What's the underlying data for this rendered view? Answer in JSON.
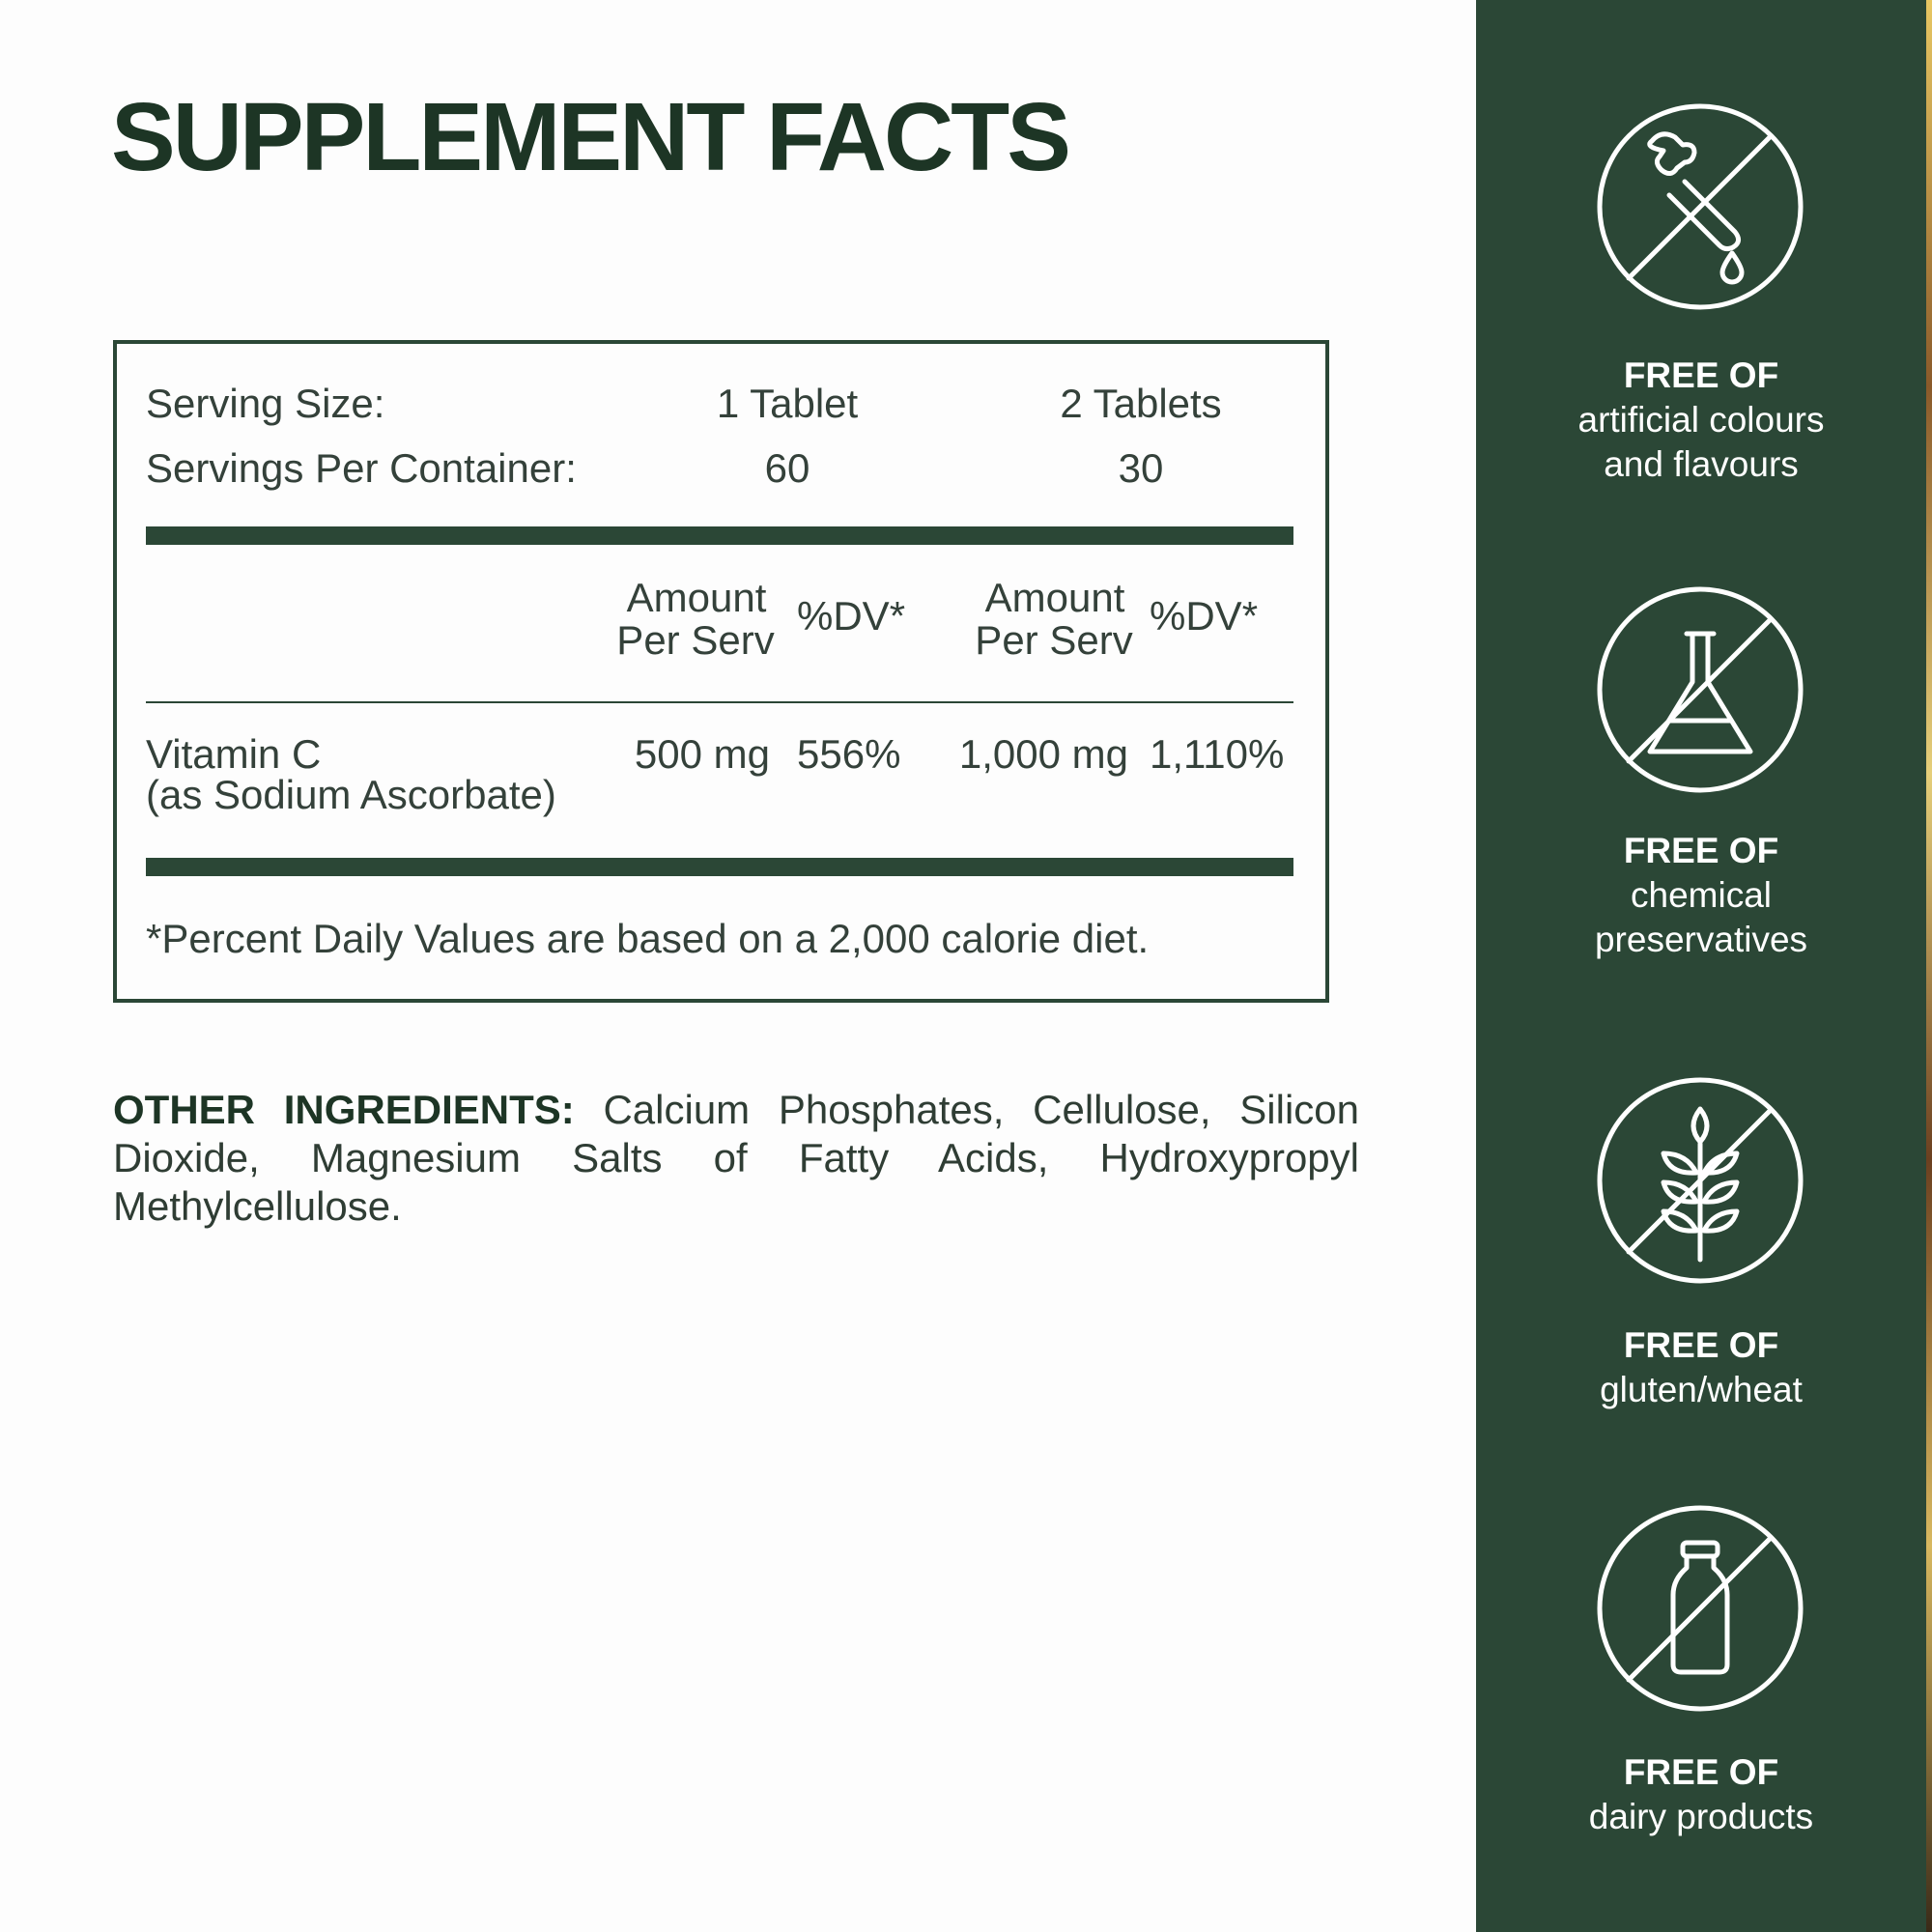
{
  "title": "SUPPLEMENT FACTS",
  "facts": {
    "serving_size_label": "Serving Size:",
    "serving_size_1": "1 Tablet",
    "serving_size_2": "2 Tablets",
    "servings_per_container_label": "Servings Per Container:",
    "servings_1": "60",
    "servings_2": "30",
    "header": {
      "amount_line1": "Amount",
      "amount_line2": "Per Serv",
      "dv": "%DV*"
    },
    "rows": [
      {
        "name": "Vitamin C",
        "source": "(as Sodium Ascorbate)",
        "amount_1": "500 mg",
        "dv_1": "556%",
        "amount_2": "1,000 mg",
        "dv_2": "1,110%"
      }
    ],
    "footnote": "*Percent Daily Values are based on a 2,000 calorie diet."
  },
  "other_ingredients": {
    "label": "OTHER INGREDIENTS:",
    "text": " Calcium Phosphates, Cellulose, Silicon Dioxide, Magnesium Salts of Fatty Acids, Hydroxypropyl Methylcellulose."
  },
  "badges": [
    {
      "icon": "no-dropper-icon",
      "heading": "FREE OF",
      "text_line1": "artificial colours",
      "text_line2": "and flavours"
    },
    {
      "icon": "no-flask-icon",
      "heading": "FREE OF",
      "text_line1": "chemical",
      "text_line2": "preservatives"
    },
    {
      "icon": "no-wheat-icon",
      "heading": "FREE OF",
      "text_line1": "gluten/wheat"
    },
    {
      "icon": "no-milk-bottle-icon",
      "heading": "FREE OF",
      "text_line1": "dairy products"
    }
  ],
  "colors": {
    "brand_green": "#2b4736",
    "title": "#1d3525",
    "text": "#34413a"
  }
}
